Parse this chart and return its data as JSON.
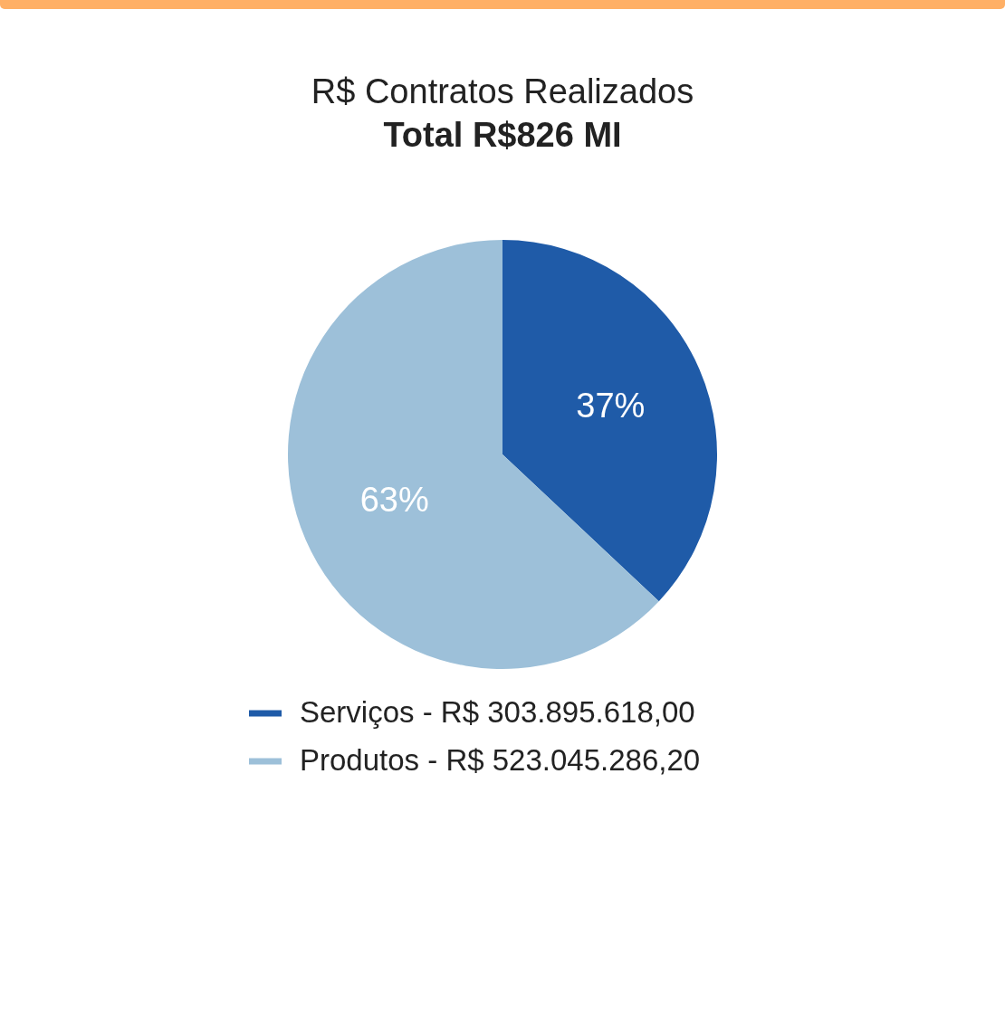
{
  "chart_data": {
    "type": "pie",
    "title": "R$ Contratos Realizados",
    "subtitle": "Total R$826 MI",
    "categories": [
      "Serviços - R$ 303.895.618,00",
      "Produtos - R$ 523.045.286,20"
    ],
    "values": [
      37,
      63
    ],
    "value_labels": [
      "37%",
      "63%"
    ],
    "colors": [
      "#1f5ba8",
      "#9dc0d9"
    ],
    "legend": "bottom"
  }
}
